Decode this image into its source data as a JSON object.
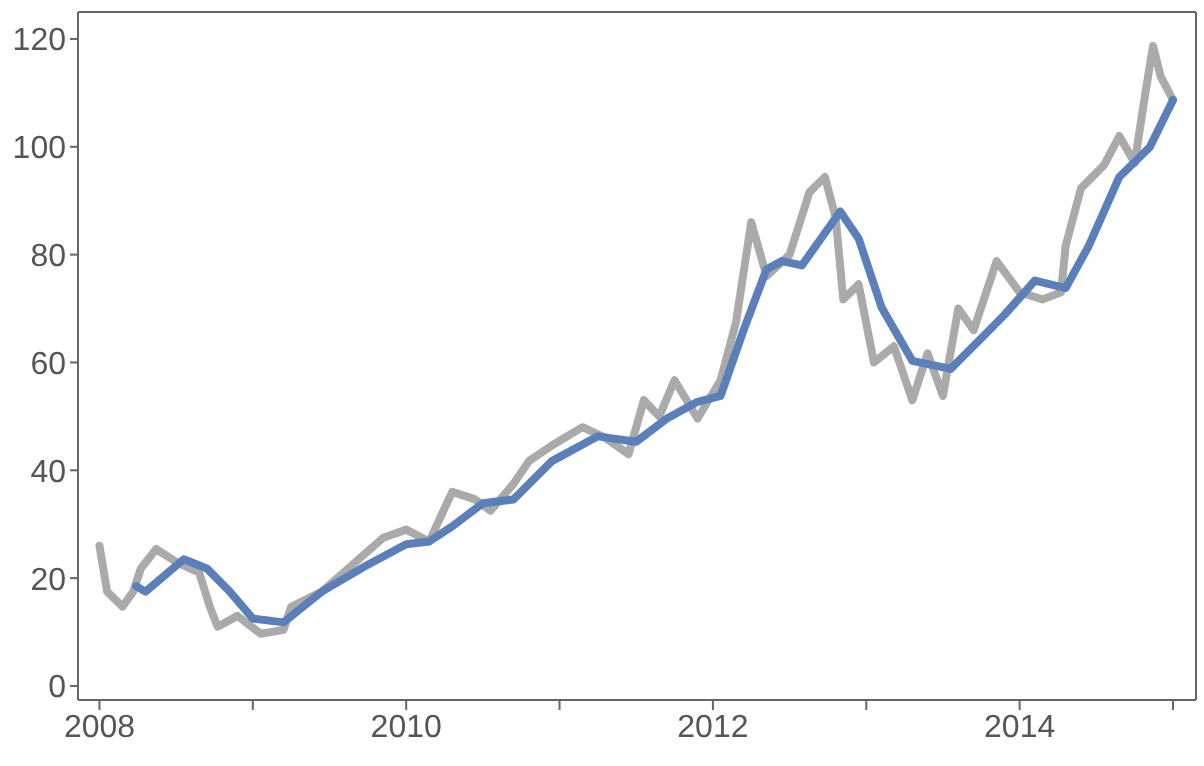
{
  "chart_data": {
    "type": "line",
    "xlim": [
      2007.86,
      2015.15
    ],
    "ylim": [
      -2.6,
      125
    ],
    "xticks": [
      2008,
      {
        "value": 2009,
        "label": null
      },
      2010,
      {
        "value": 2011,
        "label": null
      },
      2012,
      {
        "value": 2013,
        "label": null
      },
      2014,
      {
        "value": 2015,
        "label": null
      }
    ],
    "yticks": [
      0,
      20,
      40,
      60,
      80,
      100,
      120
    ],
    "grid": false,
    "marker": "none",
    "line_style": "solid",
    "series": [
      {
        "color": "#aaaaaa",
        "x": [
          2008.0,
          2008.05,
          2008.15,
          2008.22,
          2008.27,
          2008.37,
          2008.5,
          2008.65,
          2008.72,
          2008.77,
          2008.9,
          2009.05,
          2009.2,
          2009.25,
          2009.45,
          2009.65,
          2009.85,
          2010.0,
          2010.15,
          2010.3,
          2010.45,
          2010.55,
          2010.7,
          2010.8,
          2010.95,
          2011.15,
          2011.3,
          2011.45,
          2011.55,
          2011.65,
          2011.75,
          2011.9,
          2012.05,
          2012.15,
          2012.25,
          2012.35,
          2012.5,
          2012.63,
          2012.73,
          2012.8,
          2012.85,
          2012.95,
          2013.05,
          2013.18,
          2013.3,
          2013.4,
          2013.5,
          2013.6,
          2013.7,
          2013.85,
          2014.0,
          2014.15,
          2014.27,
          2014.3,
          2014.4,
          2014.55,
          2014.65,
          2014.75,
          2014.82,
          2014.87,
          2014.92,
          2015.0
        ],
        "values": [
          26,
          17.5,
          14.7,
          17.5,
          21.8,
          25.4,
          23,
          21,
          14.7,
          11,
          13,
          9.7,
          10.4,
          14.7,
          17.5,
          22.5,
          27.5,
          29,
          26.8,
          36,
          34.6,
          32.5,
          37.5,
          41.7,
          44.6,
          48,
          46,
          43,
          53,
          50,
          56.7,
          49.6,
          56.7,
          67.4,
          86,
          76,
          80,
          91.6,
          94.4,
          87,
          71.7,
          74.5,
          60,
          63,
          53,
          61.7,
          53.8,
          70,
          66,
          78.8,
          73,
          71.7,
          73,
          81.6,
          92.3,
          96.6,
          102,
          97,
          110,
          118.7,
          113,
          108.7
        ]
      },
      {
        "color": "#5b80b9",
        "x": [
          2008.24,
          2008.3,
          2008.55,
          2008.7,
          2008.85,
          2009.0,
          2009.2,
          2009.45,
          2009.75,
          2010.0,
          2010.15,
          2010.3,
          2010.5,
          2010.7,
          2010.95,
          2011.25,
          2011.5,
          2011.7,
          2011.9,
          2012.05,
          2012.2,
          2012.35,
          2012.45,
          2012.58,
          2012.83,
          2012.95,
          2013.1,
          2013.3,
          2013.55,
          2013.75,
          2013.9,
          2014.1,
          2014.3,
          2014.45,
          2014.65,
          2014.85,
          2015.0
        ],
        "values": [
          18.5,
          17.5,
          23.5,
          21.8,
          17.5,
          12.5,
          11.8,
          17.5,
          22.5,
          26.3,
          26.8,
          29.6,
          33.9,
          34.6,
          41.7,
          46.3,
          45.3,
          49.6,
          52.7,
          53.8,
          66,
          77.3,
          78.8,
          78,
          88,
          83,
          70.2,
          60.3,
          58.8,
          64.5,
          68.8,
          75.2,
          73.8,
          81.6,
          94.4,
          100,
          108.7
        ]
      }
    ]
  }
}
